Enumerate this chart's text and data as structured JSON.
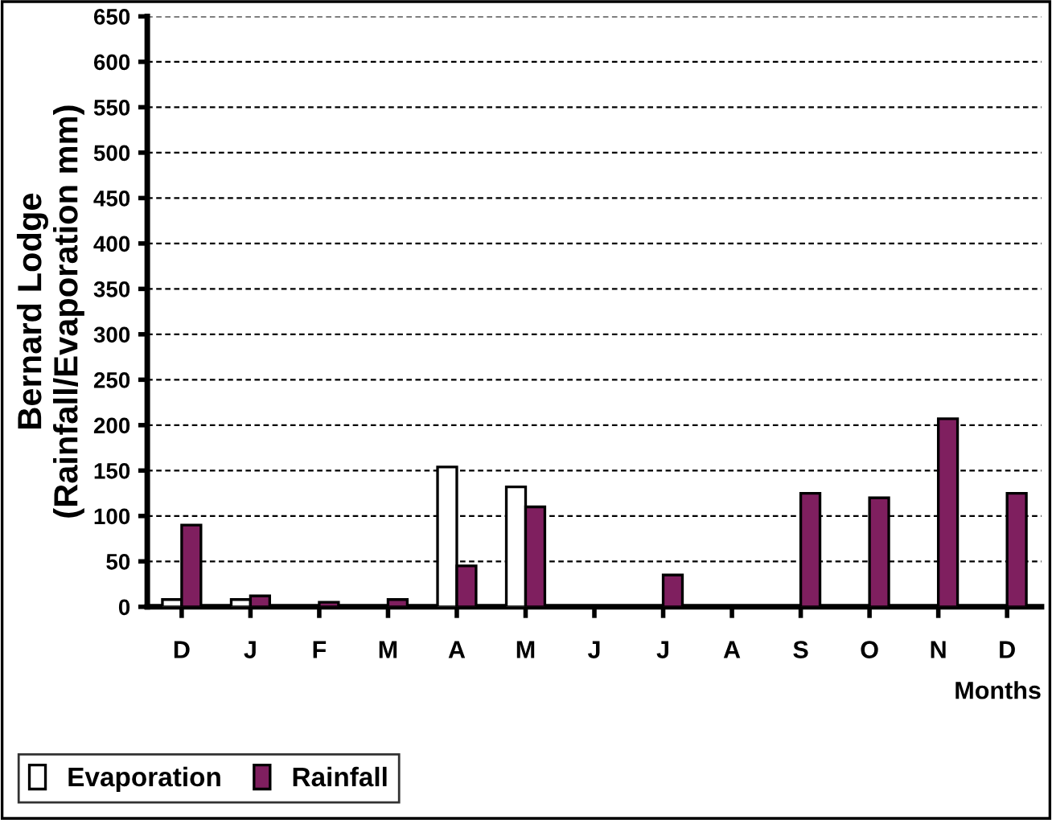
{
  "chart_data": {
    "type": "bar",
    "xlabel": "Months",
    "ylabel": "Bernard Lodge\n(Rainfall/Evaporation mm)",
    "categories": [
      "D",
      "J",
      "F",
      "M",
      "A",
      "M",
      "J",
      "J",
      "A",
      "S",
      "O",
      "N",
      "D"
    ],
    "series": [
      {
        "name": "Evaporation",
        "color": "#ffffff",
        "values": [
          8,
          8,
          null,
          null,
          154,
          132,
          null,
          null,
          null,
          null,
          null,
          null,
          null
        ]
      },
      {
        "name": "Rainfall",
        "color": "#7f1f5f",
        "values": [
          90,
          12,
          5,
          8,
          45,
          110,
          null,
          35,
          null,
          125,
          120,
          207,
          125
        ]
      }
    ],
    "ylim": [
      0,
      650
    ],
    "yticks": [
      0,
      50,
      100,
      150,
      200,
      250,
      300,
      350,
      400,
      450,
      500,
      550,
      600,
      650
    ],
    "grid": "y",
    "legend": "bottom left"
  }
}
